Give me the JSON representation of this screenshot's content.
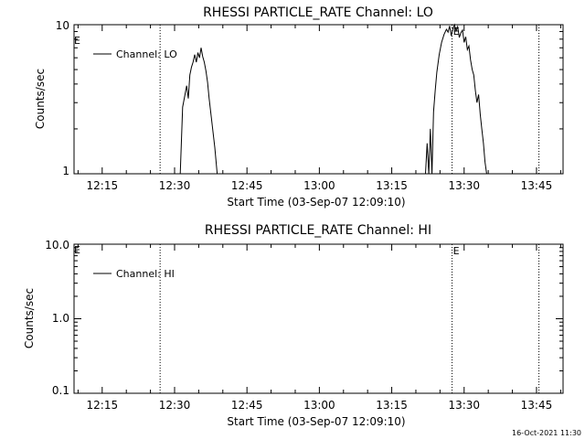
{
  "footer": {
    "timestamp": "16-Oct-2021 11:30"
  },
  "chart_data": [
    {
      "type": "line",
      "title": "RHESSI PARTICLE_RATE Channel: LO",
      "xlabel": "Start Time (03-Sep-07 12:09:10)",
      "ylabel": "Counts/sec",
      "yscale": "log",
      "ylim": [
        1,
        10
      ],
      "xlim": [
        "12:09:10",
        "13:50:30"
      ],
      "x_ticks": [
        "12:15",
        "12:30",
        "12:45",
        "13:00",
        "13:15",
        "13:30",
        "13:45"
      ],
      "y_ticks": [
        "1",
        "10"
      ],
      "legend": {
        "position": "top-left",
        "entries": [
          "Channel: LO"
        ]
      },
      "grid": false,
      "markers": [
        {
          "time": "12:27:00",
          "style": "dotted"
        },
        {
          "time": "13:27:30",
          "label": "E",
          "style": "dotted"
        },
        {
          "time": "13:45:30",
          "style": "dotted"
        }
      ],
      "corner_label": "E",
      "series": [
        {
          "name": "Channel: LO",
          "x": [
            "12:31:10",
            "12:31:40",
            "12:32:10",
            "12:32:30",
            "12:32:50",
            "12:33:10",
            "12:33:30",
            "12:33:50",
            "12:34:10",
            "12:34:30",
            "12:34:50",
            "12:35:10",
            "12:35:30",
            "12:35:50",
            "12:36:10",
            "12:36:30",
            "12:36:50",
            "12:37:10",
            "12:37:40",
            "12:38:20",
            "12:38:50",
            "13:22:00",
            "13:22:20",
            "13:22:40",
            "13:23:00",
            "13:23:20",
            "13:23:40",
            "13:24:00",
            "13:24:20",
            "13:24:50",
            "13:25:20",
            "13:25:50",
            "13:26:20",
            "13:26:40",
            "13:27:00",
            "13:27:20",
            "13:27:40",
            "13:28:00",
            "13:28:20",
            "13:28:40",
            "13:29:00",
            "13:29:20",
            "13:29:40",
            "13:30:00",
            "13:30:20",
            "13:30:40",
            "13:31:00",
            "13:31:20",
            "13:31:40",
            "13:32:00",
            "13:32:20",
            "13:32:40",
            "13:33:00",
            "13:33:20",
            "13:33:40",
            "13:34:00",
            "13:34:20",
            "13:34:40"
          ],
          "values": [
            1.0,
            2.8,
            3.4,
            3.9,
            3.2,
            4.6,
            5.2,
            5.6,
            6.3,
            5.6,
            6.5,
            6.0,
            7.0,
            6.1,
            5.6,
            4.9,
            4.1,
            3.2,
            2.3,
            1.5,
            1.0,
            1.0,
            1.6,
            1.0,
            2.0,
            1.0,
            2.6,
            3.6,
            4.8,
            6.3,
            7.6,
            8.6,
            9.3,
            8.9,
            9.8,
            8.4,
            9.4,
            10.0,
            9.1,
            9.7,
            8.2,
            8.8,
            9.2,
            7.6,
            8.3,
            6.8,
            7.2,
            5.8,
            5.0,
            4.6,
            3.6,
            3.0,
            3.4,
            2.5,
            2.0,
            1.6,
            1.2,
            1.0
          ]
        }
      ]
    },
    {
      "type": "line",
      "title": "RHESSI PARTICLE_RATE Channel: HI",
      "xlabel": "Start Time (03-Sep-07 12:09:10)",
      "ylabel": "Counts/sec",
      "yscale": "log",
      "ylim": [
        0.1,
        10
      ],
      "xlim": [
        "12:09:10",
        "13:50:30"
      ],
      "x_ticks": [
        "12:15",
        "12:30",
        "12:45",
        "13:00",
        "13:15",
        "13:30",
        "13:45"
      ],
      "y_ticks": [
        "0.1",
        "1.0",
        "10.0"
      ],
      "legend": {
        "position": "top-left",
        "entries": [
          "Channel: HI"
        ]
      },
      "grid": false,
      "markers": [
        {
          "time": "12:27:00",
          "style": "dotted"
        },
        {
          "time": "13:27:30",
          "label": "E",
          "style": "dotted"
        },
        {
          "time": "13:45:30",
          "style": "dotted"
        }
      ],
      "corner_label": "E",
      "series": [
        {
          "name": "Channel: HI",
          "x": [],
          "values": []
        }
      ]
    }
  ]
}
